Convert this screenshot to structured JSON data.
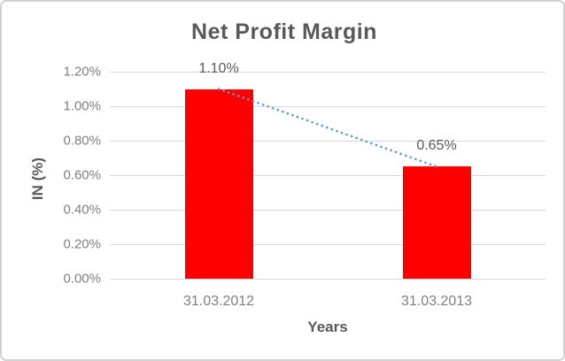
{
  "chart": {
    "title": "Net Profit Margin",
    "y_axis_title": "IN (%)",
    "x_axis_title": "Years"
  },
  "chart_data": {
    "type": "bar",
    "title": "Net Profit Margin",
    "xlabel": "Years",
    "ylabel": "IN (%)",
    "categories": [
      "31.03.2012",
      "31.03.2013"
    ],
    "values": [
      1.1,
      0.65
    ],
    "data_labels": [
      "1.10%",
      "0.65%"
    ],
    "ylim": [
      0,
      1.2
    ],
    "ytick_step": 0.2,
    "ytick_labels": [
      "0.00%",
      "0.20%",
      "0.40%",
      "0.60%",
      "0.80%",
      "1.00%",
      "1.20%"
    ],
    "grid": true,
    "legend": false,
    "trendline": {
      "type": "linear-dotted",
      "from_value": 1.1,
      "to_value": 0.65
    },
    "colors": {
      "bar": "#ff0000",
      "trendline": "#5b9bd5",
      "gridline": "#d9d9d9",
      "title_text": "#595959",
      "axis_tick_text": "#7f7f7f",
      "data_label_text": "#595959"
    }
  }
}
